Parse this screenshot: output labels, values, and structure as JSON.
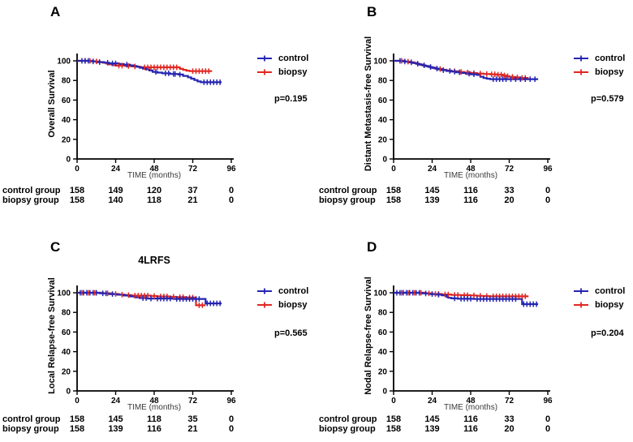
{
  "figure": {
    "background": "#ffffff",
    "accent_colors": {
      "control": "#2525b2",
      "biopsy": "#e02822",
      "axis": "#000000"
    }
  },
  "chart_data": [
    {
      "type": "line",
      "subtype": "kaplan-meier-step",
      "panel": "A",
      "title": "",
      "ylabel": "Overall Survival",
      "xlabel": "TIME (months)",
      "xticks": [
        0,
        24,
        48,
        72,
        96
      ],
      "yticks": [
        0,
        20,
        40,
        60,
        80,
        100
      ],
      "xlim": [
        0,
        96
      ],
      "ylim": [
        0,
        100
      ],
      "legend": [
        "control",
        "biopsy"
      ],
      "legend_position": "right",
      "grid": false,
      "p_label": "p=0.195",
      "series": [
        {
          "name": "control",
          "color": "#2525b2",
          "steps": [
            [
              0,
              100
            ],
            [
              8,
              99.4
            ],
            [
              12,
              98.7
            ],
            [
              17,
              98.1
            ],
            [
              20,
              97.4
            ],
            [
              26,
              96.8
            ],
            [
              29,
              96.1
            ],
            [
              33,
              95.4
            ],
            [
              35,
              94.7
            ],
            [
              37,
              94.0
            ],
            [
              39,
              93.0
            ],
            [
              41,
              92.1
            ],
            [
              43,
              91.2
            ],
            [
              45,
              90.2
            ],
            [
              47,
              88.8
            ],
            [
              50,
              88.0
            ],
            [
              53,
              87.3
            ],
            [
              58,
              86.6
            ],
            [
              63,
              86.0
            ],
            [
              66,
              84.6
            ],
            [
              69,
              83.2
            ],
            [
              71,
              81.8
            ],
            [
              73,
              80.4
            ],
            [
              75,
              79.0
            ],
            [
              77,
              78.2
            ],
            [
              90,
              78.2
            ]
          ],
          "censors": [
            3,
            5,
            7,
            10,
            14,
            19,
            22,
            24,
            31,
            49,
            55,
            57,
            60,
            61,
            64,
            79,
            81,
            83,
            85,
            87,
            89
          ]
        },
        {
          "name": "biopsy",
          "color": "#e02822",
          "steps": [
            [
              0,
              100
            ],
            [
              10,
              99.4
            ],
            [
              14,
              98.8
            ],
            [
              16,
              98.1
            ],
            [
              18,
              97.3
            ],
            [
              20,
              96.4
            ],
            [
              22,
              95.6
            ],
            [
              24,
              95.1
            ],
            [
              30,
              94.7
            ],
            [
              34,
              94.3
            ],
            [
              38,
              93.8
            ],
            [
              40,
              93.4
            ],
            [
              63,
              93.4
            ],
            [
              64,
              91.8
            ],
            [
              66,
              90.8
            ],
            [
              68,
              90.0
            ],
            [
              70,
              89.5
            ],
            [
              84,
              89.5
            ]
          ],
          "censors": [
            5,
            8,
            12,
            26,
            28,
            32,
            36,
            42,
            44,
            46,
            48,
            50,
            52,
            54,
            56,
            58,
            60,
            62,
            72,
            74,
            76,
            78,
            80,
            82
          ]
        }
      ],
      "at_risk": {
        "rows": [
          {
            "label": "control group",
            "counts": [
              "158",
              "149",
              "120",
              "37",
              "0"
            ]
          },
          {
            "label": "biopsy group",
            "counts": [
              "158",
              "140",
              "118",
              "21",
              "0"
            ]
          }
        ]
      }
    },
    {
      "type": "line",
      "subtype": "kaplan-meier-step",
      "panel": "B",
      "title": "",
      "ylabel": "Distant Metastasis-free Survival",
      "xlabel": "TIME (months)",
      "xticks": [
        0,
        24,
        48,
        72,
        96
      ],
      "yticks": [
        0,
        20,
        40,
        60,
        80,
        100
      ],
      "xlim": [
        0,
        96
      ],
      "ylim": [
        0,
        100
      ],
      "legend": [
        "control",
        "biopsy"
      ],
      "legend_position": "right",
      "grid": false,
      "p_label": "p=0.579",
      "series": [
        {
          "name": "control",
          "color": "#2525b2",
          "steps": [
            [
              0,
              100
            ],
            [
              6,
              99.3
            ],
            [
              9,
              98.5
            ],
            [
              12,
              97.8
            ],
            [
              14,
              97.0
            ],
            [
              16,
              96.2
            ],
            [
              18,
              95.4
            ],
            [
              20,
              94.6
            ],
            [
              22,
              93.7
            ],
            [
              24,
              92.9
            ],
            [
              26,
              92.1
            ],
            [
              28,
              91.3
            ],
            [
              30,
              90.5
            ],
            [
              33,
              89.7
            ],
            [
              36,
              89.0
            ],
            [
              39,
              88.3
            ],
            [
              42,
              87.6
            ],
            [
              45,
              86.9
            ],
            [
              48,
              86.3
            ],
            [
              52,
              85.6
            ],
            [
              54,
              83.8
            ],
            [
              56,
              82.5
            ],
            [
              58,
              81.8
            ],
            [
              60,
              81.3
            ],
            [
              90,
              81.3
            ]
          ],
          "censors": [
            4,
            7,
            11,
            15,
            19,
            23,
            27,
            31,
            35,
            38,
            41,
            47,
            50,
            62,
            64,
            66,
            68,
            70,
            73,
            76,
            79,
            82,
            85,
            88
          ]
        },
        {
          "name": "biopsy",
          "color": "#e02822",
          "steps": [
            [
              0,
              100
            ],
            [
              7,
              99.2
            ],
            [
              10,
              98.4
            ],
            [
              13,
              97.6
            ],
            [
              15,
              96.7
            ],
            [
              17,
              95.8
            ],
            [
              19,
              94.9
            ],
            [
              21,
              94.1
            ],
            [
              23,
              93.3
            ],
            [
              25,
              92.5
            ],
            [
              27,
              91.7
            ],
            [
              30,
              90.9
            ],
            [
              33,
              90.1
            ],
            [
              36,
              89.4
            ],
            [
              40,
              88.7
            ],
            [
              44,
              88.1
            ],
            [
              48,
              87.5
            ],
            [
              52,
              87.0
            ],
            [
              56,
              86.6
            ],
            [
              60,
              86.3
            ],
            [
              64,
              85.9
            ],
            [
              68,
              85.1
            ],
            [
              70,
              84.4
            ],
            [
              72,
              83.7
            ],
            [
              75,
              83.1
            ],
            [
              78,
              82.6
            ],
            [
              84,
              82.6
            ]
          ],
          "censors": [
            5,
            9,
            29,
            38,
            42,
            46,
            50,
            54,
            58,
            61,
            63,
            65,
            67,
            69,
            71,
            74,
            77,
            80,
            82
          ]
        }
      ],
      "at_risk": {
        "rows": [
          {
            "label": "control group",
            "counts": [
              "158",
              "145",
              "116",
              "33",
              "0"
            ]
          },
          {
            "label": "biopsy group",
            "counts": [
              "158",
              "139",
              "116",
              "20",
              "0"
            ]
          }
        ]
      }
    },
    {
      "type": "line",
      "subtype": "kaplan-meier-step",
      "panel": "C",
      "title": "4LRFS",
      "ylabel": "Local Relapse-free Survival",
      "xlabel": "TIME (months)",
      "xticks": [
        0,
        24,
        48,
        72,
        96
      ],
      "yticks": [
        0,
        20,
        40,
        60,
        80,
        100
      ],
      "xlim": [
        0,
        96
      ],
      "ylim": [
        0,
        100
      ],
      "legend": [
        "control",
        "biopsy"
      ],
      "legend_position": "right",
      "grid": false,
      "p_label": "p=0.565",
      "series": [
        {
          "name": "control",
          "color": "#2525b2",
          "steps": [
            [
              0,
              100
            ],
            [
              14,
              99.4
            ],
            [
              20,
              98.7
            ],
            [
              25,
              98.0
            ],
            [
              29,
              97.2
            ],
            [
              33,
              96.3
            ],
            [
              36,
              95.3
            ],
            [
              39,
              94.6
            ],
            [
              44,
              94.1
            ],
            [
              60,
              93.7
            ],
            [
              79,
              93.7
            ],
            [
              80,
              89.2
            ],
            [
              90,
              89.2
            ]
          ],
          "censors": [
            2,
            4,
            6,
            8,
            10,
            12,
            16,
            18,
            22,
            41,
            43,
            46,
            50,
            52,
            54,
            56,
            58,
            62,
            64,
            66,
            68,
            70,
            72,
            74,
            76,
            81,
            83,
            85,
            87,
            89
          ]
        },
        {
          "name": "biopsy",
          "color": "#e02822",
          "steps": [
            [
              0,
              100
            ],
            [
              16,
              99.4
            ],
            [
              22,
              98.8
            ],
            [
              26,
              98.1
            ],
            [
              30,
              97.6
            ],
            [
              34,
              97.1
            ],
            [
              46,
              96.7
            ],
            [
              50,
              96.3
            ],
            [
              58,
              95.9
            ],
            [
              62,
              95.5
            ],
            [
              68,
              95.1
            ],
            [
              73,
              94.8
            ],
            [
              74,
              87.3
            ],
            [
              80,
              87.3
            ]
          ],
          "censors": [
            3,
            7,
            11,
            19,
            24,
            28,
            32,
            36,
            38,
            40,
            42,
            44,
            48,
            52,
            54,
            56,
            60,
            64,
            66,
            70,
            72,
            76,
            78
          ]
        }
      ],
      "at_risk": {
        "rows": [
          {
            "label": "control group",
            "counts": [
              "158",
              "145",
              "118",
              "35",
              "0"
            ]
          },
          {
            "label": "biopsy group",
            "counts": [
              "158",
              "139",
              "116",
              "21",
              "0"
            ]
          }
        ]
      }
    },
    {
      "type": "line",
      "subtype": "kaplan-meier-step",
      "panel": "D",
      "title": "",
      "ylabel": "Nodal Relapse-free Survival",
      "xlabel": "TIME (months)",
      "xticks": [
        0,
        24,
        48,
        72,
        96
      ],
      "yticks": [
        0,
        20,
        40,
        60,
        80,
        100
      ],
      "xlim": [
        0,
        96
      ],
      "ylim": [
        0,
        100
      ],
      "legend": [
        "control",
        "biopsy"
      ],
      "legend_position": "right",
      "grid": false,
      "p_label": "p=0.204",
      "series": [
        {
          "name": "control",
          "color": "#2525b2",
          "steps": [
            [
              0,
              100
            ],
            [
              18,
              99.3
            ],
            [
              22,
              98.7
            ],
            [
              26,
              98.1
            ],
            [
              30,
              97.4
            ],
            [
              33,
              95.9
            ],
            [
              34,
              94.9
            ],
            [
              36,
              94.3
            ],
            [
              40,
              93.9
            ],
            [
              50,
              93.6
            ],
            [
              79,
              93.6
            ],
            [
              80,
              88.4
            ],
            [
              90,
              88.4
            ]
          ],
          "censors": [
            2,
            4,
            6,
            8,
            10,
            12,
            14,
            16,
            20,
            24,
            28,
            38,
            42,
            44,
            46,
            48,
            52,
            54,
            56,
            58,
            60,
            62,
            64,
            66,
            68,
            70,
            72,
            74,
            76,
            81,
            83,
            85,
            87,
            89
          ]
        },
        {
          "name": "biopsy",
          "color": "#e02822",
          "steps": [
            [
              0,
              100
            ],
            [
              20,
              99.4
            ],
            [
              24,
              98.8
            ],
            [
              30,
              98.3
            ],
            [
              36,
              97.8
            ],
            [
              42,
              97.5
            ],
            [
              48,
              97.3
            ],
            [
              52,
              96.9
            ],
            [
              56,
              96.6
            ],
            [
              60,
              96.4
            ],
            [
              84,
              96.4
            ]
          ],
          "censors": [
            5,
            9,
            13,
            17,
            22,
            26,
            28,
            32,
            34,
            38,
            40,
            44,
            46,
            50,
            54,
            58,
            62,
            64,
            66,
            68,
            70,
            72,
            74,
            76,
            78,
            80,
            82
          ]
        }
      ],
      "at_risk": {
        "rows": [
          {
            "label": "control group",
            "counts": [
              "158",
              "145",
              "116",
              "33",
              "0"
            ]
          },
          {
            "label": "biopsy group",
            "counts": [
              "158",
              "139",
              "116",
              "20",
              "0"
            ]
          }
        ]
      }
    }
  ]
}
